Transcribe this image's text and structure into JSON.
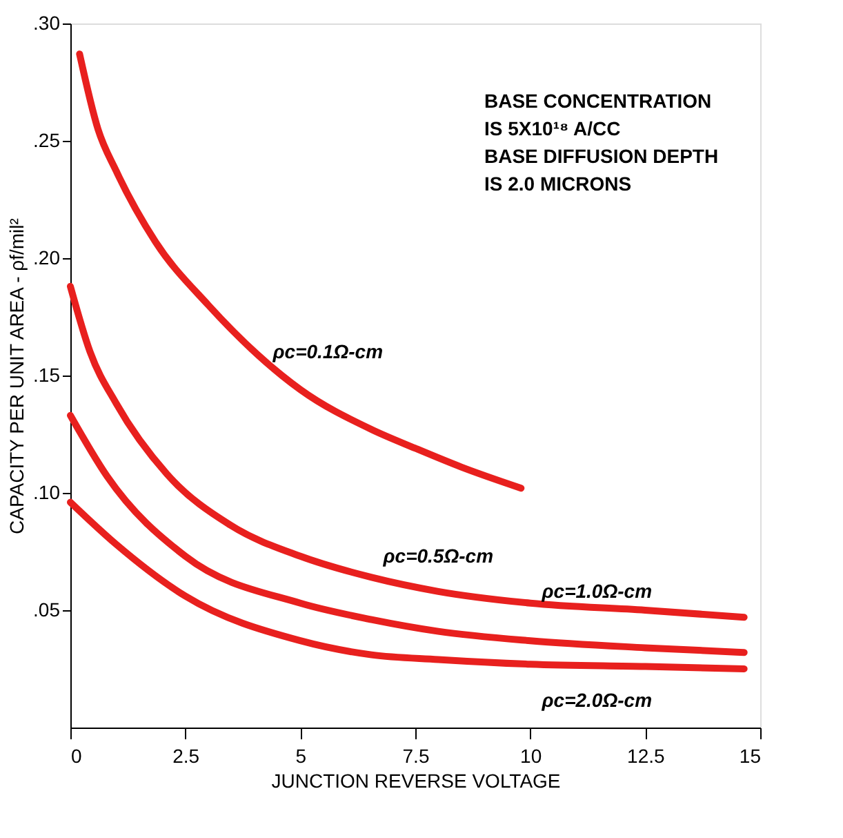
{
  "chart_data": {
    "type": "line",
    "xlabel": "JUNCTION REVERSE VOLTAGE",
    "ylabel": "CAPACITY PER UNIT AREA - ρf/mil²",
    "xlim": [
      0,
      15
    ],
    "xticks": [
      0,
      2.5,
      5,
      7.5,
      10,
      12.5,
      15
    ],
    "ylim": [
      0,
      0.3
    ],
    "yticks": [
      {
        "value": 0.05,
        "label": ".05"
      },
      {
        "value": 0.1,
        "label": ".10"
      },
      {
        "value": 0.15,
        "label": ".15"
      },
      {
        "value": 0.2,
        "label": ".20"
      },
      {
        "value": 0.25,
        "label": ".25"
      },
      {
        "value": 0.3,
        "label": ".30"
      }
    ],
    "grid": false,
    "legend": false,
    "marker": "none",
    "line_style": "solid",
    "series": [
      {
        "color": "#e8201e",
        "x": [
          0.2,
          0.6,
          1.0,
          1.85,
          3,
          4.6,
          5,
          6.55,
          7.5,
          8.5,
          9.8
        ],
        "values": [
          0.287,
          0.255,
          0.237,
          0.207,
          0.18,
          0.15,
          0.144,
          0.127,
          0.119,
          0.111,
          0.102
        ]
      },
      {
        "color": "#e8201e",
        "x": [
          0,
          0.43,
          1,
          2.1,
          3.5,
          5,
          6.55,
          8,
          10,
          12.5,
          14.65
        ],
        "values": [
          0.188,
          0.16,
          0.138,
          0.108,
          0.086,
          0.073,
          0.064,
          0.058,
          0.053,
          0.05,
          0.047
        ]
      },
      {
        "color": "#e8201e",
        "x": [
          0,
          0.8,
          2.5,
          5,
          6.55,
          8,
          10,
          12.5,
          14.65
        ],
        "values": [
          0.133,
          0.107,
          0.073,
          0.053,
          0.046,
          0.041,
          0.037,
          0.034,
          0.032
        ]
      },
      {
        "color": "#e8201e",
        "x": [
          0,
          1,
          2.5,
          5,
          6.55,
          8,
          10,
          12.5,
          14.65
        ],
        "values": [
          0.096,
          0.078,
          0.056,
          0.037,
          0.031,
          0.029,
          0.027,
          0.026,
          0.025
        ]
      }
    ],
    "annotations": [
      {
        "text": "ρc=0.1Ω-cm",
        "x": 5,
        "y": 0.142
      },
      {
        "text": "ρc=0.5Ω-cm",
        "x": 8.9,
        "y": 0.055
      },
      {
        "text": "ρc=1.0Ω-cm",
        "x": 9.8,
        "y": 0.037
      },
      {
        "text": "ρc=2.0Ω-cm",
        "x": 9.8,
        "y": 0.027
      },
      "BASE CONCENTRATION\nIS 5X10¹⁸ A/CC\nBASE DIFFUSION DEPTH\nIS 2.0 MICRONS"
    ]
  }
}
